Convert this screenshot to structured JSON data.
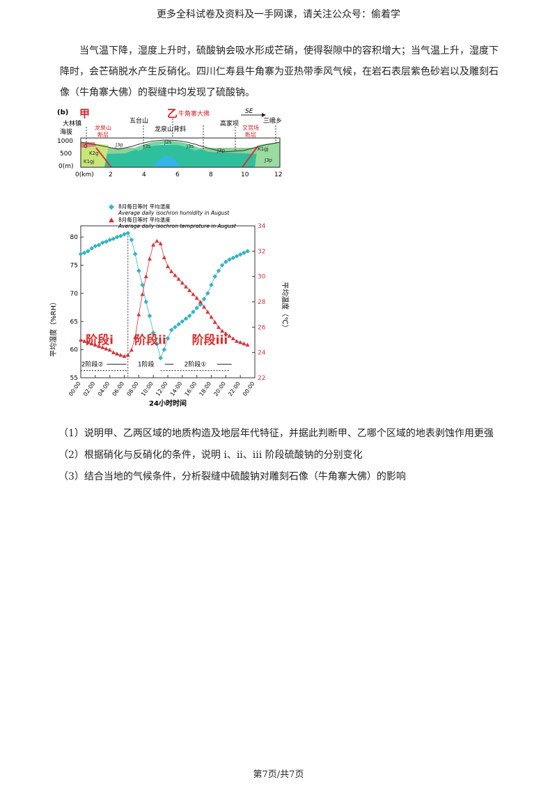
{
  "header": "更多全科试卷及资料及一手网课，请关注公众号：偷着学",
  "intro": "当气温下降，湿度上升时，硫酸钠会吸水形成芒硝，使得裂隙中的容积增大；当气温上升，湿度下降时，会芒硝脱水产生反硝化。四川仁寿县牛角寨为亚热带季风气候，在岩石表层紫色砂岩以及雕刻石像（牛角寨大佛）的裂缝中均发现了硫酸钠。",
  "section": {
    "panel": "(b)",
    "jia": "甲",
    "yi": "乙",
    "buddha": "牛角寨大佛",
    "se": "SE",
    "places": [
      "大林镇",
      "五台山",
      "龙泉山背斜",
      "高家坝",
      "三峨乡"
    ],
    "faults": [
      "龙泉山",
      "断层",
      "文宫场",
      "断层"
    ],
    "elev_title": "海拔",
    "elev_ticks": [
      "1000",
      "500",
      "0(m)"
    ],
    "km_ticks": [
      "0(km)",
      "2",
      "4",
      "6",
      "8",
      "10",
      "12"
    ],
    "strata": [
      "Q",
      "K2g",
      "K1gj",
      "J3p",
      "J3s",
      "J2s",
      "J3s",
      "J3p",
      "K1gj",
      "J3p"
    ]
  },
  "chart_data": {
    "type": "line",
    "legend": [
      {
        "zh": "8月每日等时 平均湿度",
        "en": "Average daily isochron humidity in August"
      },
      {
        "zh": "8月每日等时 平均温度",
        "en": "Average daily isochron temprature in August"
      }
    ],
    "ylabel_left": "平均湿度（%RH）",
    "ylabel_right": "平均温度（℃）",
    "xlabel": "24小时时间",
    "x_ticks": [
      "00:00",
      "02:00",
      "04:00",
      "06:00",
      "08:00",
      "10:00",
      "12:00",
      "14:00",
      "16:00",
      "18:00",
      "20:00",
      "22:00",
      "00:00"
    ],
    "left_ticks": [
      "55",
      "60",
      "65",
      "70",
      "75",
      "80"
    ],
    "right_ticks": [
      "22",
      "24",
      "26",
      "28",
      "30",
      "32",
      "34"
    ],
    "ylim_left": [
      55,
      82
    ],
    "ylim_right": [
      22,
      34
    ],
    "stages": [
      "阶段i",
      "阶段ii",
      "阶段iii"
    ],
    "bottom_labels": [
      "2阶段②",
      "1阶段",
      "2阶段①"
    ],
    "series": [
      {
        "name": "humidity",
        "axis": "left",
        "color": "#2fb8c9",
        "x": [
          0,
          0.5,
          1,
          1.5,
          2,
          2.5,
          3,
          3.5,
          4,
          4.5,
          5,
          5.5,
          6,
          6.5,
          7,
          7.5,
          8,
          8.5,
          9,
          9.5,
          10,
          10.5,
          11,
          11.5,
          12,
          12.5,
          13,
          13.5,
          14,
          14.5,
          15,
          15.5,
          16,
          16.5,
          17,
          17.5,
          18,
          18.5,
          19,
          19.5,
          20,
          20.5,
          21,
          21.5,
          22,
          22.5,
          23
        ],
        "values": [
          77,
          77.2,
          77.5,
          78,
          78.4,
          78.6,
          79,
          79.2,
          79.5,
          79.7,
          80,
          80.2,
          80.5,
          80.7,
          79.5,
          77,
          74,
          71.5,
          68.5,
          66,
          63,
          61,
          58.5,
          60,
          62,
          63.5,
          64,
          64.5,
          65,
          65.5,
          66,
          66.7,
          67.4,
          68,
          69,
          70,
          71.5,
          73,
          74,
          75,
          75.6,
          76,
          76.3,
          76.6,
          76.9,
          77.2,
          77.5
        ]
      },
      {
        "name": "temperature",
        "axis": "right",
        "color": "#d4333c",
        "x": [
          0,
          0.5,
          1,
          1.5,
          2,
          2.5,
          3,
          3.5,
          4,
          4.5,
          5,
          5.5,
          6,
          6.5,
          7,
          7.5,
          8,
          8.5,
          9,
          9.5,
          10,
          10.5,
          11,
          11.5,
          12,
          12.5,
          13,
          13.5,
          14,
          14.5,
          15,
          15.5,
          16,
          16.5,
          17,
          17.5,
          18,
          18.5,
          19,
          19.5,
          20,
          20.5,
          21,
          21.5,
          22,
          22.5,
          23
        ],
        "values": [
          25,
          24.9,
          24.8,
          24.7,
          24.6,
          24.5,
          24.4,
          24.3,
          24.2,
          24.0,
          23.9,
          23.8,
          23.7,
          23.8,
          24.2,
          25.2,
          27,
          28.6,
          30,
          31.4,
          32.5,
          32.8,
          32.6,
          31.5,
          30.8,
          30.4,
          30.1,
          29.8,
          29.5,
          29.2,
          28.9,
          28.6,
          28.3,
          28.0,
          27.6,
          27.2,
          26.8,
          26.4,
          26.0,
          25.7,
          25.5,
          25.3,
          25.1,
          24.9,
          24.8,
          24.7,
          24.6
        ]
      }
    ]
  },
  "questions": [
    "（1）说明甲、乙两区域的地质构造及地层年代特征，并据此判断甲、乙哪个区域的地表剥蚀作用更强",
    "（2）根据硝化与反硝化的条件，说明 i、ii、iii 阶段硫酸钠的分别变化",
    "（3）结合当地的气候条件，分析裂缝中硫酸钠对雕刻石像（牛角寨大佛）的影响"
  ],
  "footer": "第7页/共7页"
}
